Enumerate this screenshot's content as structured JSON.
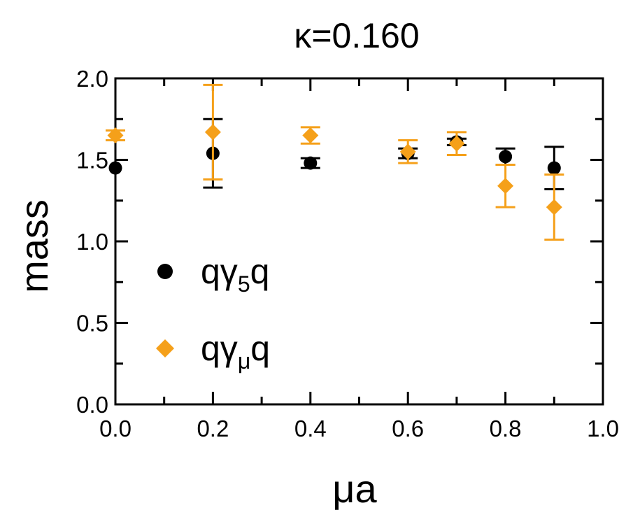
{
  "chart_data": {
    "type": "scatter",
    "title": "κ=0.160",
    "xlabel": "μa",
    "ylabel": "mass",
    "xlim": [
      0.0,
      1.0
    ],
    "ylim": [
      0.0,
      2.0
    ],
    "x_ticks": [
      "0.0",
      "0.2",
      "0.4",
      "0.6",
      "0.8",
      "1.0"
    ],
    "y_ticks": [
      "0.0",
      "0.5",
      "1.0",
      "1.5",
      "2.0"
    ],
    "grid": false,
    "legend_position": "lower-left",
    "series": [
      {
        "name": "qγ5q",
        "legend_base": "qγ",
        "legend_sub": "5",
        "legend_tail": "q",
        "marker": "circle",
        "color": "#000000",
        "points": [
          {
            "x": 0.0,
            "y": 1.45,
            "err": 0.0
          },
          {
            "x": 0.2,
            "y": 1.54,
            "err": 0.21
          },
          {
            "x": 0.4,
            "y": 1.48,
            "err": 0.03
          },
          {
            "x": 0.6,
            "y": 1.54,
            "err": 0.03
          },
          {
            "x": 0.7,
            "y": 1.61,
            "err": 0.02
          },
          {
            "x": 0.8,
            "y": 1.52,
            "err": 0.05
          },
          {
            "x": 0.9,
            "y": 1.45,
            "err": 0.13
          }
        ]
      },
      {
        "name": "qγμq",
        "legend_base": "qγ",
        "legend_sub": "μ",
        "legend_tail": "q",
        "marker": "diamond",
        "color": "#f5a01a",
        "points": [
          {
            "x": 0.0,
            "y": 1.65,
            "err": 0.03
          },
          {
            "x": 0.2,
            "y": 1.67,
            "err": 0.29
          },
          {
            "x": 0.4,
            "y": 1.65,
            "err": 0.05
          },
          {
            "x": 0.6,
            "y": 1.55,
            "err": 0.07
          },
          {
            "x": 0.7,
            "y": 1.6,
            "err": 0.07
          },
          {
            "x": 0.8,
            "y": 1.34,
            "err": 0.13
          },
          {
            "x": 0.9,
            "y": 1.21,
            "err": 0.2
          }
        ]
      }
    ]
  }
}
